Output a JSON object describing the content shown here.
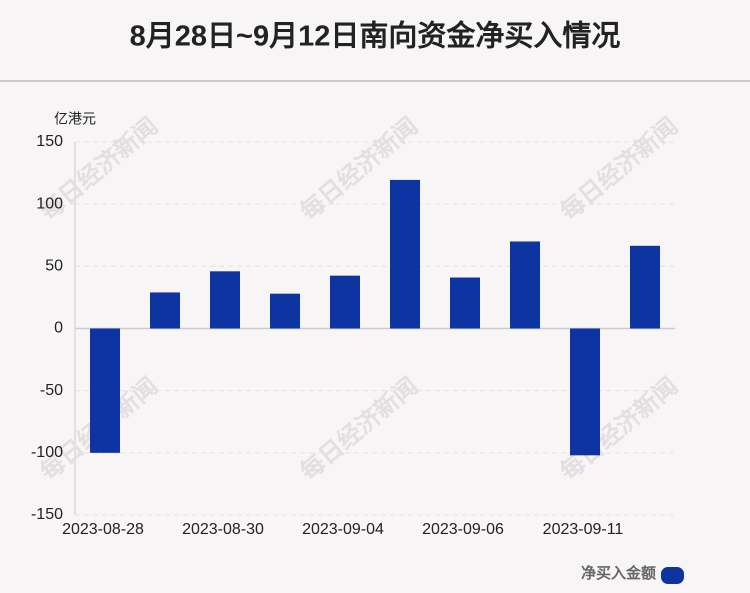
{
  "chart_data": {
    "type": "bar",
    "title": "8月28日~9月12日南向资金净买入情况",
    "y_label": "亿港元",
    "watermark": "每日经济新闻",
    "categories": [
      "2023-08-28",
      null,
      "2023-08-30",
      null,
      "2023-09-04",
      null,
      "2023-09-06",
      null,
      "2023-09-11",
      null
    ],
    "series": [
      {
        "name": "净买入金额",
        "color": "#0d34a0",
        "values": [
          -100,
          29,
          46,
          28,
          42.5,
          119.5,
          41,
          70,
          -102,
          66.5
        ]
      }
    ],
    "ylim": [
      -150,
      150
    ],
    "yticks": [
      -150,
      -100,
      -50,
      0,
      50,
      100,
      150
    ],
    "grid": true,
    "legend": "bottom-right"
  }
}
